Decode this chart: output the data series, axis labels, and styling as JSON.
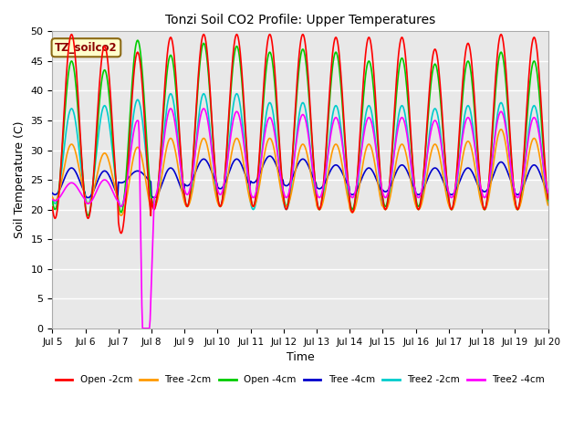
{
  "title": "Tonzi Soil CO2 Profile: Upper Temperatures",
  "xlabel": "Time",
  "ylabel": "Soil Temperature (C)",
  "ylim": [
    0,
    50
  ],
  "xlim": [
    0,
    15
  ],
  "x_tick_labels": [
    "Jul 5",
    "Jul 6",
    "Jul 7",
    "Jul 8",
    "Jul 9",
    "Jul 10",
    "Jul 11",
    "Jul 12",
    "Jul 13",
    "Jul 14",
    "Jul 15",
    "Jul 16",
    "Jul 17",
    "Jul 18",
    "Jul 19",
    "Jul 20"
  ],
  "annotation_text": "TZ_soilco2",
  "legend_entries": [
    "Open -2cm",
    "Tree -2cm",
    "Open -4cm",
    "Tree -4cm",
    "Tree2 -2cm",
    "Tree2 -4cm"
  ],
  "line_colors": [
    "#ff0000",
    "#ff9900",
    "#00cc00",
    "#0000cc",
    "#00cccc",
    "#ff00ff"
  ],
  "fig_bg_color": "#ffffff",
  "plot_bg_color": "#e8e8e8",
  "grid_color": "#ffffff",
  "annotation_box_fc": "#ffffcc",
  "annotation_box_ec": "#8B6914",
  "annotation_text_color": "#8B0000"
}
